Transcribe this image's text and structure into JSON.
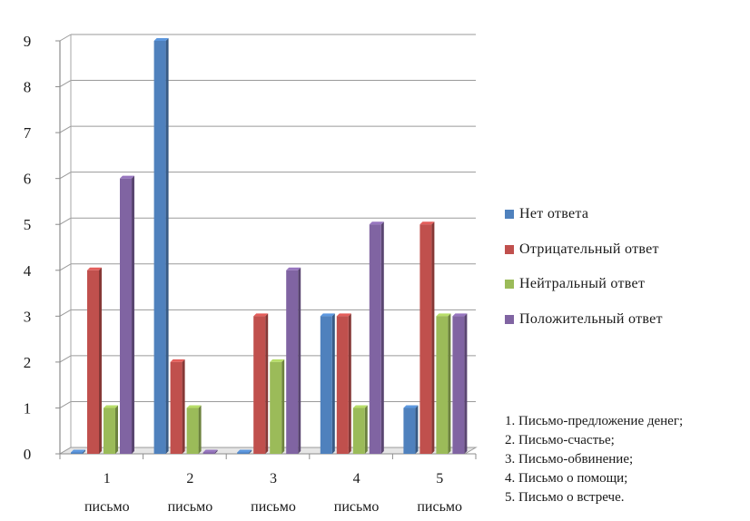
{
  "chart_data": {
    "type": "bar",
    "categories": [
      "1 письмо",
      "2 письмо",
      "3 письмо",
      "4 письмо",
      "5 письмо"
    ],
    "category_lines": [
      [
        "1",
        "письмо"
      ],
      [
        "2",
        "письмо"
      ],
      [
        "3",
        "письмо"
      ],
      [
        "4",
        "письмо"
      ],
      [
        "5",
        "письмо"
      ]
    ],
    "series": [
      {
        "name": "Нет ответа",
        "color": "#4f81bd",
        "values": [
          0,
          9,
          0,
          3,
          1
        ]
      },
      {
        "name": "Отрицательный ответ",
        "color": "#c0504d",
        "values": [
          4,
          2,
          3,
          3,
          5
        ]
      },
      {
        "name": "Нейтральный ответ",
        "color": "#9bbb59",
        "values": [
          1,
          1,
          2,
          1,
          3
        ]
      },
      {
        "name": "Положительный ответ",
        "color": "#8064a2",
        "values": [
          6,
          0,
          4,
          5,
          3
        ]
      }
    ],
    "y_ticks": [
      "0",
      "1",
      "2",
      "3",
      "4",
      "5",
      "6",
      "7",
      "8",
      "9"
    ],
    "ylim": [
      0,
      9
    ],
    "grid": true,
    "legend_position": "right",
    "title": "",
    "xlabel": "",
    "ylabel": ""
  },
  "notes": [
    "1. Письмо-предложение денег;",
    "2. Письмо-счастье;",
    "3. Письмо-обвинение;",
    "4. Письмо о помощи;",
    "5. Письмо о встрече."
  ]
}
